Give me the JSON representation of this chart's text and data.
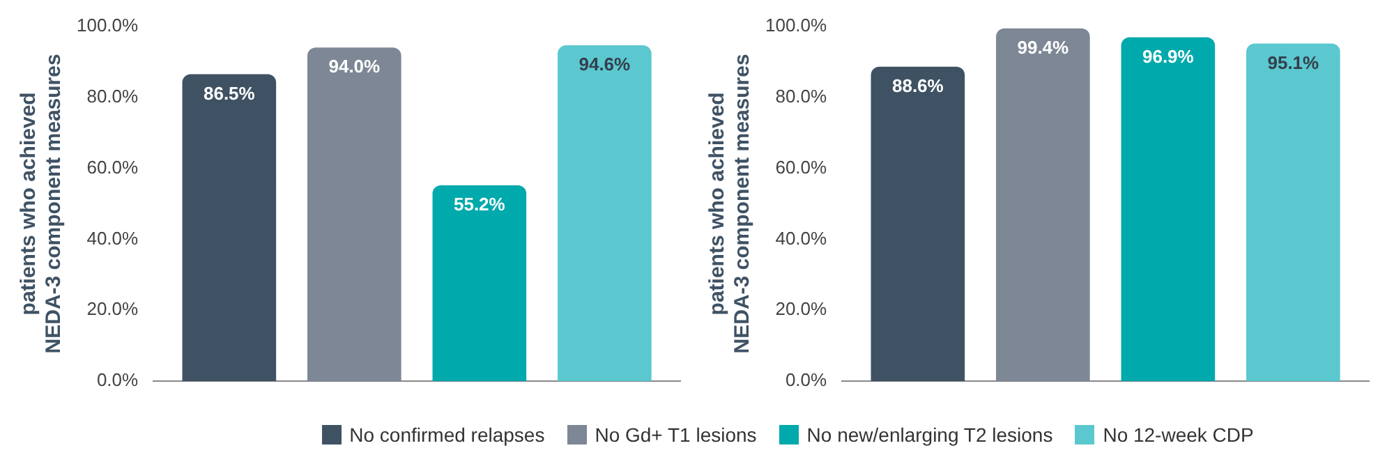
{
  "chart_data": [
    {
      "type": "bar",
      "ylabel": "patients who achieved NEDA-3 component measures",
      "categories": [
        null
      ],
      "series": [
        {
          "name": "No confirmed relapses",
          "color": "#3f5264",
          "values": [
            86.5
          ],
          "value_labels": [
            "86.5%"
          ]
        },
        {
          "name": "No Gd+ T1 lesions",
          "color": "#7d8795",
          "values": [
            94.0
          ],
          "value_labels": [
            "94.0%"
          ]
        },
        {
          "name": "No new/enlarging T2 lesions",
          "color": "#00a9ac",
          "values": [
            55.2
          ],
          "value_labels": [
            "55.2%"
          ]
        },
        {
          "name": "No 12-week CDP",
          "color": "#5bc8cf",
          "values": [
            94.6
          ],
          "value_labels": [
            "94.6%"
          ]
        }
      ],
      "ylim": [
        0,
        100
      ],
      "yticks": [
        {
          "value": 0,
          "label": "0.0%"
        },
        {
          "value": 20,
          "label": "20.0%"
        },
        {
          "value": 40,
          "label": "40.0%"
        },
        {
          "value": 60,
          "label": "60.0%"
        },
        {
          "value": 80,
          "label": "80.0%"
        },
        {
          "value": 100,
          "label": "100.0%"
        }
      ],
      "grid": false,
      "legend": "bottom"
    },
    {
      "type": "bar",
      "ylabel": "patients who achieved NEDA-3 component measures",
      "categories": [
        null
      ],
      "series": [
        {
          "color": "#3f5264",
          "values": [
            88.6
          ],
          "value_labels": [
            "88.6%"
          ]
        },
        {
          "color": "#7d8795",
          "values": [
            99.4
          ],
          "value_labels": [
            "99.4%"
          ]
        },
        {
          "color": "#00a9ac",
          "values": [
            96.9
          ],
          "value_labels": [
            "96.9%"
          ]
        },
        {
          "color": "#5bc8cf",
          "values": [
            95.1
          ],
          "value_labels": [
            "95.1%"
          ]
        }
      ],
      "ylim": [
        0,
        100
      ],
      "yticks": [
        {
          "value": 0,
          "label": "0.0%"
        },
        {
          "value": 20,
          "label": "20.0%"
        },
        {
          "value": 40,
          "label": "40.0%"
        },
        {
          "value": 60,
          "label": "60.0%"
        },
        {
          "value": 80,
          "label": "80.0%"
        },
        {
          "value": 100,
          "label": "100.0%"
        }
      ],
      "grid": false
    }
  ]
}
